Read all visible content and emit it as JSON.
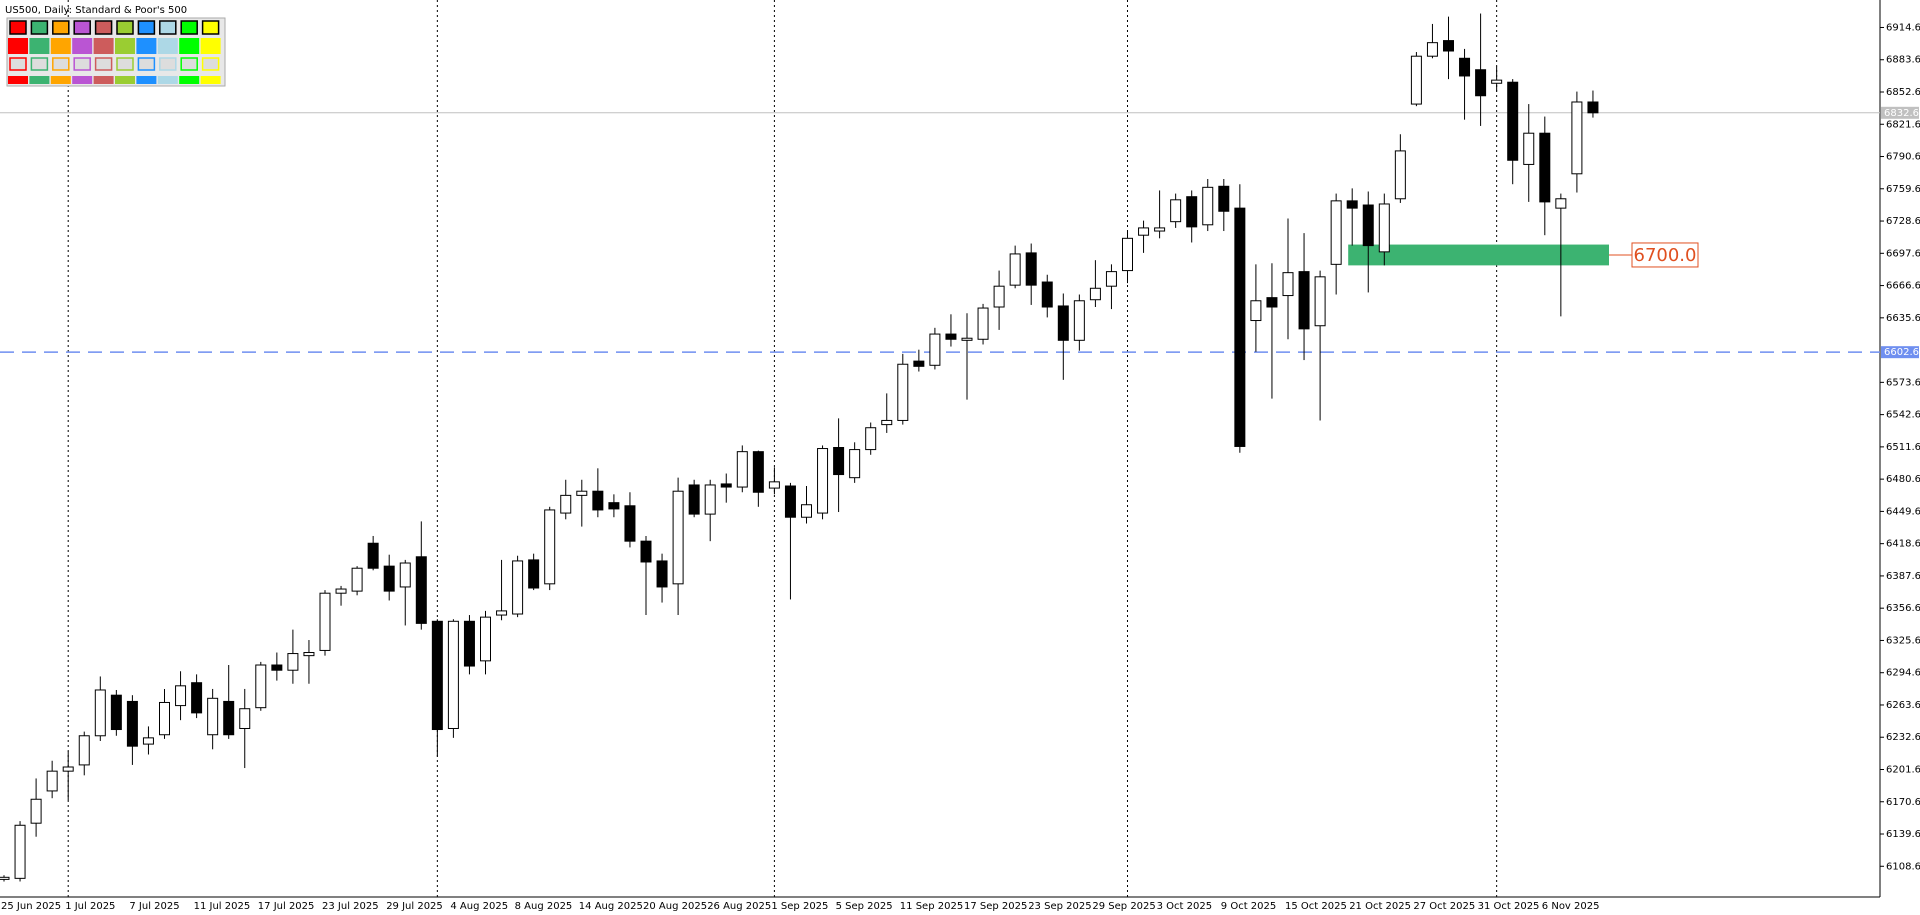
{
  "chart_data": {
    "type": "candlestick",
    "title": "US500, Daily:  Standard & Poor's 500",
    "categories": [
      "25 Jun 2025",
      null,
      null,
      null,
      "1 Jul 2025",
      null,
      null,
      null,
      "7 Jul 2025",
      null,
      null,
      null,
      "11 Jul 2025",
      null,
      null,
      null,
      "17 Jul 2025",
      null,
      null,
      null,
      "23 Jul 2025",
      null,
      null,
      null,
      "29 Jul 2025",
      null,
      null,
      null,
      "4 Aug 2025",
      null,
      null,
      null,
      "8 Aug 2025",
      null,
      null,
      null,
      "14 Aug 2025",
      null,
      null,
      null,
      "20 Aug 2025",
      null,
      null,
      null,
      "26 Aug 2025",
      null,
      null,
      null,
      "1 Sep 2025",
      null,
      null,
      null,
      "5 Sep 2025",
      null,
      null,
      null,
      "11 Sep 2025",
      null,
      null,
      null,
      "17 Sep 2025",
      null,
      null,
      null,
      "23 Sep 2025",
      null,
      null,
      null,
      "29 Sep 2025",
      null,
      null,
      null,
      "3 Oct 2025",
      null,
      null,
      null,
      "9 Oct 2025",
      null,
      null,
      null,
      "15 Oct 2025",
      null,
      null,
      null,
      "21 Oct 2025",
      null,
      null,
      null,
      "27 Oct 2025",
      null,
      null,
      null,
      "31 Oct 2025",
      null,
      null,
      null,
      "6 Nov 2025",
      null,
      null,
      null
    ],
    "open": [
      6096,
      6097,
      6150,
      6181,
      6200,
      6206,
      6234,
      6273,
      6267,
      6226,
      6235,
      6263,
      6285,
      6235,
      6267,
      6241,
      6261,
      6302,
      6297,
      6311,
      6316,
      6371,
      6373,
      6419,
      6397,
      6377,
      6406,
      6344,
      6241,
      6344,
      6306,
      6350,
      6351,
      6403,
      6380,
      6448,
      6465,
      6469,
      6458,
      6455,
      6421,
      6402,
      6380,
      6475,
      6447,
      6476,
      6473,
      6507,
      6472,
      6474,
      6444,
      6448,
      6511,
      6482,
      6509,
      6533,
      6537,
      6594,
      6590,
      6620,
      6614,
      6615,
      6646,
      6667,
      6698,
      6670,
      6647,
      6614,
      6653,
      6666,
      6681,
      6715,
      6719,
      6728,
      6752,
      6725,
      6762,
      6741,
      6633,
      6655,
      6657,
      6680,
      6628,
      6687,
      6748,
      6744,
      6699,
      6750,
      6841,
      6887,
      6902,
      6885,
      6874,
      6861,
      6862,
      6783,
      6813,
      6741,
      6774,
      6843
    ],
    "high": [
      6100,
      6152,
      6193,
      6210,
      6219,
      6238,
      6291,
      6278,
      6273,
      6243,
      6279,
      6296,
      6293,
      6279,
      6302,
      6279,
      6305,
      6314,
      6336,
      6326,
      6374,
      6378,
      6397,
      6426,
      6408,
      6403,
      6440,
      6346,
      6346,
      6350,
      6354,
      6403,
      6407,
      6409,
      6454,
      6480,
      6480,
      6491,
      6466,
      6468,
      6426,
      6409,
      6482,
      6480,
      6480,
      6486,
      6513,
      6508,
      6492,
      6477,
      6474,
      6513,
      6539,
      6516,
      6535,
      6563,
      6601,
      6605,
      6626,
      6639,
      6640,
      6649,
      6681,
      6705,
      6707,
      6677,
      6659,
      6658,
      6691,
      6687,
      6719,
      6729,
      6758,
      6755,
      6758,
      6769,
      6769,
      6764,
      6687,
      6688,
      6731,
      6717,
      6681,
      6755,
      6760,
      6757,
      6755,
      6812,
      6891,
      6918,
      6925,
      6894,
      6928,
      6877,
      6865,
      6841,
      6829,
      6755,
      6853,
      6854
    ],
    "low": [
      6094,
      6094,
      6137,
      6174,
      6172,
      6196,
      6229,
      6234,
      6206,
      6216,
      6231,
      6249,
      6251,
      6221,
      6231,
      6203,
      6258,
      6287,
      6284,
      6284,
      6311,
      6359,
      6369,
      6393,
      6364,
      6340,
      6336,
      6214,
      6232,
      6293,
      6293,
      6345,
      6348,
      6374,
      6374,
      6442,
      6435,
      6444,
      6444,
      6415,
      6350,
      6362,
      6350,
      6444,
      6421,
      6458,
      6468,
      6454,
      6466,
      6365,
      6438,
      6442,
      6449,
      6477,
      6504,
      6525,
      6533,
      6584,
      6586,
      6608,
      6557,
      6610,
      6624,
      6664,
      6648,
      6636,
      6576,
      6604,
      6646,
      6644,
      6669,
      6698,
      6712,
      6722,
      6708,
      6719,
      6719,
      6506,
      6603,
      6558,
      6615,
      6595,
      6537,
      6658,
      6705,
      6660,
      6686,
      6746,
      6839,
      6885,
      6865,
      6826,
      6820,
      6853,
      6764,
      6747,
      6715,
      6637,
      6756,
      6828
    ],
    "close": [
      6098,
      6148,
      6173,
      6200,
      6204,
      6234,
      6278,
      6240,
      6224,
      6232,
      6266,
      6282,
      6256,
      6270,
      6235,
      6260,
      6302,
      6297,
      6313,
      6314,
      6371,
      6375,
      6395,
      6395,
      6373,
      6400,
      6342,
      6240,
      6344,
      6301,
      6348,
      6354,
      6402,
      6376,
      6451,
      6465,
      6469,
      6451,
      6452,
      6421,
      6401,
      6377,
      6469,
      6447,
      6475,
      6473,
      6507,
      6468,
      6478,
      6444,
      6456,
      6510,
      6485,
      6509,
      6530,
      6537,
      6591,
      6589,
      6620,
      6615,
      6616,
      6645,
      6666,
      6697,
      6667,
      6646,
      6614,
      6652,
      6664,
      6680,
      6712,
      6722,
      6722,
      6749,
      6723,
      6761,
      6738,
      6512,
      6652,
      6646,
      6679,
      6625,
      6675,
      6748,
      6741,
      6705,
      6745,
      6796,
      6887,
      6900,
      6892,
      6868,
      6849,
      6864,
      6787,
      6813,
      6747,
      6750,
      6843,
      6832.6
    ],
    "up_color": "#ffffff",
    "down_color": "#000000",
    "ylim": [
      6081,
      6941
    ],
    "yticks": [
      6914.6,
      6883.6,
      6852.6,
      6821.6,
      6790.6,
      6759.6,
      6728.6,
      6697.6,
      6666.6,
      6635.6,
      6573.6,
      6542.6,
      6511.6,
      6480.6,
      6449.6,
      6418.6,
      6387.6,
      6356.6,
      6325.6,
      6294.6,
      6263.6,
      6232.6,
      6201.6,
      6170.6,
      6139.6,
      6108.6
    ],
    "hlines": [
      {
        "value": 6832.6,
        "color": "#c0c0c0",
        "style": "solid"
      },
      {
        "value": 6602.6,
        "color": "#6f8ff0",
        "style": "dashed"
      }
    ],
    "zones": [
      {
        "low": 6686,
        "high": 6706,
        "label": "6700.0",
        "color": "#3cb371"
      }
    ]
  }
}
